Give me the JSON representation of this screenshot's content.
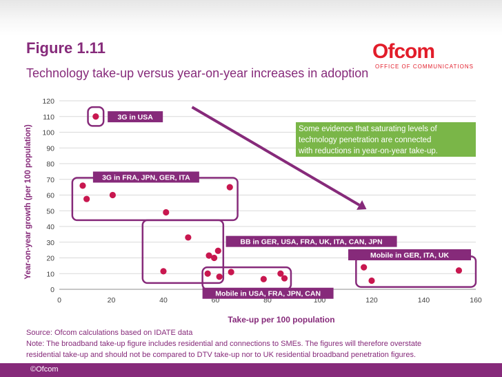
{
  "slide": {
    "figure_label": "Figure 1.11",
    "subtitle": "Technology take-up versus year-on-year increases in adoption",
    "logo_text": "Ofcom",
    "logo_tagline": "OFFICE OF COMMUNICATIONS",
    "source": "Source: Ofcom calculations based on IDATE data",
    "note_line1": "Note: The broadband take-up figure includes residential and connections to SMEs. The figures will therefore overstate",
    "note_line2": "residential take-up and should not be compared to DTV take-up nor to UK residential broadband penetration figures.",
    "copyright": "©Ofcom"
  },
  "colors": {
    "purple": "#862a7a",
    "green": "#7ab648",
    "point": "#c8174f",
    "grid": "#d9d9d9",
    "label_bg": "#862a7a"
  },
  "chart_data": {
    "type": "scatter",
    "title": "",
    "xlabel": "Take-up per 100 population",
    "ylabel": "Year-on-year growth (per 100 population)",
    "xlim": [
      0,
      160
    ],
    "ylim": [
      0,
      120
    ],
    "xticks": [
      0,
      20,
      40,
      60,
      80,
      100,
      120,
      140,
      160
    ],
    "yticks": [
      0,
      10,
      20,
      30,
      40,
      50,
      60,
      70,
      80,
      90,
      100,
      110,
      120
    ],
    "grid": true,
    "points": [
      {
        "x": 14,
        "y": 110
      },
      {
        "x": 9,
        "y": 66
      },
      {
        "x": 10.5,
        "y": 57.5
      },
      {
        "x": 20.5,
        "y": 60
      },
      {
        "x": 41,
        "y": 49
      },
      {
        "x": 65.5,
        "y": 65
      },
      {
        "x": 49.5,
        "y": 33
      },
      {
        "x": 40,
        "y": 11.5
      },
      {
        "x": 57,
        "y": 10
      },
      {
        "x": 57.5,
        "y": 21.5
      },
      {
        "x": 59.5,
        "y": 20
      },
      {
        "x": 61,
        "y": 24.5
      },
      {
        "x": 61.5,
        "y": 8
      },
      {
        "x": 66,
        "y": 11
      },
      {
        "x": 78.5,
        "y": 6.5
      },
      {
        "x": 85,
        "y": 10
      },
      {
        "x": 86.5,
        "y": 7
      },
      {
        "x": 117,
        "y": 14
      },
      {
        "x": 120,
        "y": 5.5
      },
      {
        "x": 153.5,
        "y": 12
      }
    ],
    "groups": [
      {
        "label": "3G in USA",
        "x_range": [
          11,
          17
        ],
        "y_range": [
          104,
          116
        ]
      },
      {
        "label": "3G in FRA, JPN, GER, ITA",
        "x_range": [
          5,
          68.5
        ],
        "y_range": [
          44,
          71
        ]
      },
      {
        "label": "BB in GER, USA, FRA, UK, ITA, CAN, JPN",
        "x_range": [
          32,
          63
        ],
        "y_range": [
          4,
          44
        ]
      },
      {
        "label": "Mobile in USA, FRA, JPN, CAN",
        "x_range": [
          55,
          89
        ],
        "y_range": [
          0,
          14
        ]
      },
      {
        "label": "Mobile in GER, ITA, UK",
        "x_range": [
          114,
          160
        ],
        "y_range": [
          1.5,
          21
        ]
      }
    ],
    "annotation": {
      "line1": "Some evidence that saturating levels of",
      "line2": "technology penetration are connected",
      "line3": "with reductions in year-on-year take-up.",
      "arrow_from": {
        "x": 51,
        "y": 116
      },
      "arrow_to": {
        "x": 118,
        "y": 51
      }
    }
  }
}
